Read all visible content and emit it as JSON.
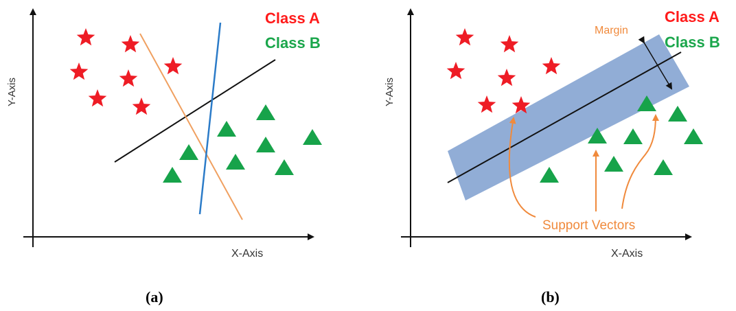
{
  "panels": [
    {
      "id": "a",
      "caption": "(a)",
      "x_axis_label": "X-Axis",
      "y_axis_label": "Y-Axis",
      "legend": [
        {
          "label": "Class A",
          "color": "#ff1a1a"
        },
        {
          "label": "Class B",
          "color": "#1aa64b"
        }
      ]
    },
    {
      "id": "b",
      "caption": "(b)",
      "x_axis_label": "X-Axis",
      "y_axis_label": "Y-Axis",
      "legend": [
        {
          "label": "Class A",
          "color": "#ff1a1a"
        },
        {
          "label": "Class B",
          "color": "#1aa64b"
        }
      ],
      "margin_label": "Margin",
      "support_vectors_label": "Support Vectors"
    }
  ],
  "colors": {
    "class_a": "#ee1c25",
    "class_b": "#17a34a",
    "line_black": "#111111",
    "line_blue": "#2b7bc8",
    "line_orange": "#f0a060",
    "annotation_orange": "#f08a3c",
    "margin_band": "#7e9fcf"
  },
  "icons": {
    "class_a_marker": "star-icon",
    "class_b_marker": "triangle-icon"
  }
}
